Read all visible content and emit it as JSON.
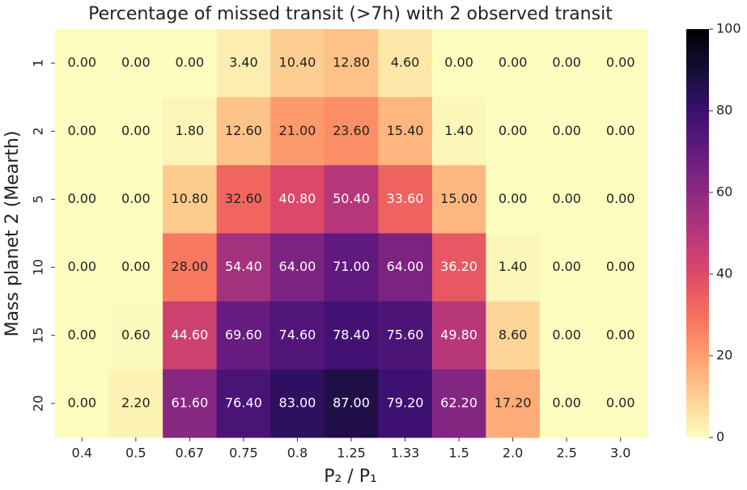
{
  "chart_data": {
    "type": "heatmap",
    "title": "Percentage of missed transit (>7h) with 2 observed transit",
    "x_label": "P₂ / P₁",
    "y_label": "Mass planet 2 (Mearth)",
    "x_categories": [
      "0.4",
      "0.5",
      "0.67",
      "0.75",
      "0.8",
      "1.25",
      "1.33",
      "1.5",
      "2.0",
      "2.5",
      "3.0"
    ],
    "y_categories": [
      "1",
      "2",
      "5",
      "10",
      "15",
      "20"
    ],
    "values": [
      [
        0,
        0,
        0,
        3.4,
        10.4,
        12.8,
        4.6,
        0,
        0,
        0,
        0
      ],
      [
        0,
        0,
        1.8,
        12.6,
        21,
        23.6,
        15.4,
        1.4,
        0,
        0,
        0
      ],
      [
        0,
        0,
        10.8,
        32.6,
        40.8,
        50.4,
        33.6,
        15,
        0,
        0,
        0
      ],
      [
        0,
        0,
        28,
        54.4,
        64,
        71,
        64,
        36.2,
        1.4,
        0,
        0
      ],
      [
        0,
        0.6,
        44.6,
        69.6,
        74.6,
        78.4,
        75.6,
        49.8,
        8.6,
        0,
        0
      ],
      [
        0,
        2.2,
        61.6,
        76.4,
        83,
        87,
        79.2,
        62.2,
        17.2,
        0,
        0
      ]
    ],
    "value_labels": [
      [
        "0.00",
        "0.00",
        "0.00",
        "3.40",
        "10.40",
        "12.80",
        "4.60",
        "0.00",
        "0.00",
        "0.00",
        "0.00"
      ],
      [
        "0.00",
        "0.00",
        "1.80",
        "12.60",
        "21.00",
        "23.60",
        "15.40",
        "1.40",
        "0.00",
        "0.00",
        "0.00"
      ],
      [
        "0.00",
        "0.00",
        "10.80",
        "32.60",
        "40.80",
        "50.40",
        "33.60",
        "15.00",
        "0.00",
        "0.00",
        "0.00"
      ],
      [
        "0.00",
        "0.00",
        "28.00",
        "54.40",
        "64.00",
        "71.00",
        "64.00",
        "36.20",
        "1.40",
        "0.00",
        "0.00"
      ],
      [
        "0.00",
        "0.60",
        "44.60",
        "69.60",
        "74.60",
        "78.40",
        "75.60",
        "49.80",
        "8.60",
        "0.00",
        "0.00"
      ],
      [
        "0.00",
        "2.20",
        "61.60",
        "76.40",
        "83.00",
        "87.00",
        "79.20",
        "62.20",
        "17.20",
        "0.00",
        "0.00"
      ]
    ],
    "colormap": "magma_r",
    "zlim": [
      0,
      100
    ],
    "zticks": [
      0,
      20,
      40,
      60,
      80,
      100
    ]
  }
}
